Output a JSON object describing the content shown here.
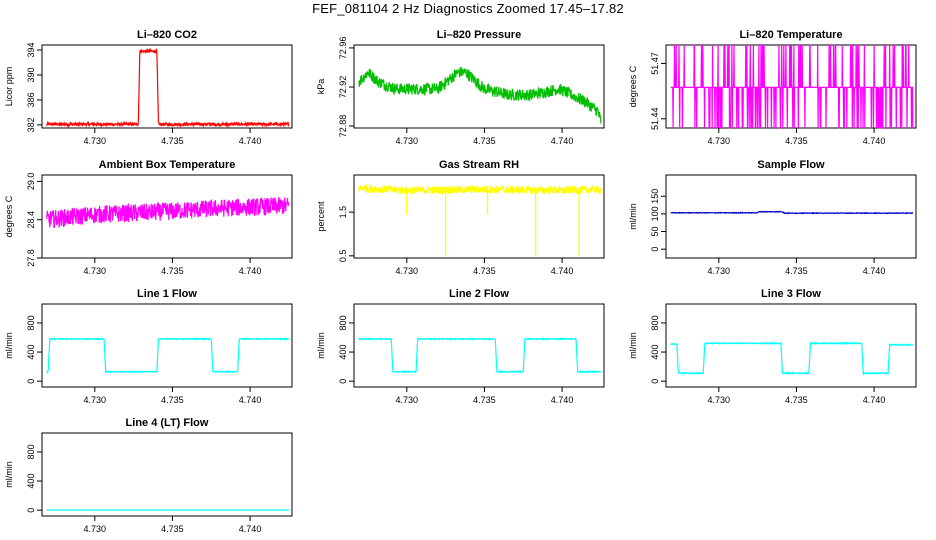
{
  "page": {
    "title": "FEF_081104  2 Hz Diagnostics Zoomed 17.45–17.82"
  },
  "chart_data": [
    {
      "type": "line",
      "title": "Li–820 CO2",
      "ylabel": "Licor ppm",
      "color": "#ff0000",
      "xlim": [
        4.7266,
        4.7427
      ],
      "ylim": [
        381.5,
        394.8
      ],
      "yticks": [
        "382",
        "386",
        "390",
        "394"
      ],
      "yticks_values": [
        382,
        386,
        390,
        394
      ],
      "xticks": [
        "4.730",
        "4.735",
        "4.740"
      ],
      "xticks_values": [
        4.73,
        4.735,
        4.74
      ],
      "x": [
        4.7269,
        4.7328,
        4.7329,
        4.734,
        4.7341,
        4.7425
      ],
      "y": [
        382.1,
        382.1,
        393.8,
        393.8,
        382.1,
        382.1
      ],
      "noise": 0.25
    },
    {
      "type": "line",
      "title": "Li–820 Pressure",
      "ylabel": "kPa",
      "color": "#00c000",
      "xlim": [
        4.7266,
        4.7427
      ],
      "ylim": [
        72.878,
        72.963
      ],
      "yticks": [
        "72.88",
        "72.92",
        "72.96"
      ],
      "yticks_values": [
        72.88,
        72.92,
        72.96
      ],
      "xticks": [
        "4.730",
        "4.735",
        "4.740"
      ],
      "xticks_values": [
        4.73,
        4.735,
        4.74
      ],
      "x": [
        4.7269,
        4.7275,
        4.7282,
        4.7293,
        4.732,
        4.7333,
        4.7338,
        4.735,
        4.7365,
        4.738,
        4.7398,
        4.7415,
        4.7423,
        4.7425
      ],
      "y": [
        72.925,
        72.935,
        72.925,
        72.918,
        72.918,
        72.935,
        72.935,
        72.918,
        72.912,
        72.912,
        72.918,
        72.905,
        72.895,
        72.885
      ],
      "noise": 0.006
    },
    {
      "type": "line",
      "title": "Li–820 Temperature",
      "ylabel": "degrees C",
      "color": "#ff00ff",
      "xlim": [
        4.7266,
        4.7427
      ],
      "ylim": [
        51.435,
        51.48
      ],
      "yticks": [
        "51.44",
        "51.47"
      ],
      "yticks_values": [
        51.44,
        51.47
      ],
      "xticks": [
        "4.730",
        "4.735",
        "4.740"
      ],
      "xticks_values": [
        4.73,
        4.735,
        4.74
      ],
      "x": [
        4.7269,
        4.7425
      ],
      "y": [
        51.457,
        51.457
      ],
      "noise": 0.0,
      "spike_high": 51.48,
      "spike_low": 51.435
    },
    {
      "type": "line",
      "title": "Ambient Box Temperature",
      "ylabel": "degrees C",
      "color": "#ff00ff",
      "xlim": [
        4.7266,
        4.7427
      ],
      "ylim": [
        27.8,
        29.1
      ],
      "yticks": [
        "27.8",
        "28.4",
        "29.0"
      ],
      "yticks_values": [
        27.8,
        28.4,
        29.0
      ],
      "xticks": [
        "4.730",
        "4.735",
        "4.740"
      ],
      "xticks_values": [
        4.73,
        4.735,
        4.74
      ],
      "x": [
        4.7269,
        4.73,
        4.734,
        4.738,
        4.7425
      ],
      "y": [
        28.4,
        28.48,
        28.52,
        28.58,
        28.62
      ],
      "noise": 0.14
    },
    {
      "type": "line",
      "title": "Gas Stream RH",
      "ylabel": "percent",
      "color": "#ffff00",
      "xlim": [
        4.7266,
        4.7427
      ],
      "ylim": [
        0.45,
        2.35
      ],
      "yticks": [
        "0.5",
        "1.5"
      ],
      "yticks_values": [
        0.5,
        1.5
      ],
      "xticks": [
        "4.730",
        "4.735",
        "4.740"
      ],
      "xticks_values": [
        4.73,
        4.735,
        4.74
      ],
      "x": [
        4.7269,
        4.73,
        4.735,
        4.74,
        4.7425
      ],
      "y": [
        2.05,
        2.0,
        2.02,
        2.0,
        2.02
      ],
      "noise": 0.09
    },
    {
      "type": "line",
      "title": "Sample Flow",
      "ylabel": "ml/min",
      "color": "#0000cc",
      "xlim": [
        4.7266,
        4.7427
      ],
      "ylim": [
        -25,
        210
      ],
      "yticks": [
        "0",
        "50",
        "100",
        "150"
      ],
      "yticks_values": [
        0,
        50,
        100,
        150
      ],
      "xticks": [
        "4.730",
        "4.735",
        "4.740"
      ],
      "xticks_values": [
        4.73,
        4.735,
        4.74
      ],
      "x": [
        4.7269,
        4.7325,
        4.7326,
        4.7341,
        4.7342,
        4.7425
      ],
      "y": [
        103,
        103,
        106,
        106,
        102,
        102
      ],
      "noise": 0.8
    },
    {
      "type": "line",
      "title": "Line 1 Flow",
      "ylabel": "ml/min",
      "color": "#00ffff",
      "xlim": [
        4.7266,
        4.7427
      ],
      "ylim": [
        -80,
        1060
      ],
      "yticks": [
        "0",
        "400",
        "800"
      ],
      "yticks_values": [
        0,
        400,
        800
      ],
      "xticks": [
        "4.730",
        "4.735",
        "4.740"
      ],
      "xticks_values": [
        4.73,
        4.735,
        4.74
      ],
      "x": [
        4.7269,
        4.727,
        4.7271,
        4.7306,
        4.7307,
        4.734,
        4.7341,
        4.7375,
        4.7376,
        4.7392,
        4.7393,
        4.7425
      ],
      "y": [
        130,
        130,
        580,
        580,
        130,
        130,
        580,
        580,
        130,
        130,
        580,
        580
      ],
      "noise": 6
    },
    {
      "type": "line",
      "title": "Line 2 Flow",
      "ylabel": "ml/min",
      "color": "#00ffff",
      "xlim": [
        4.7266,
        4.7427
      ],
      "ylim": [
        -80,
        1060
      ],
      "yticks": [
        "0",
        "400",
        "800"
      ],
      "yticks_values": [
        0,
        400,
        800
      ],
      "xticks": [
        "4.730",
        "4.735",
        "4.740"
      ],
      "xticks_values": [
        4.73,
        4.735,
        4.74
      ],
      "x": [
        4.7269,
        4.729,
        4.7291,
        4.7306,
        4.7307,
        4.7357,
        4.7358,
        4.7375,
        4.7376,
        4.7409,
        4.741,
        4.7425
      ],
      "y": [
        580,
        580,
        130,
        130,
        580,
        580,
        130,
        130,
        580,
        580,
        130,
        130
      ],
      "noise": 6
    },
    {
      "type": "line",
      "title": "Line 3 Flow",
      "ylabel": "ml/min",
      "color": "#00ffff",
      "xlim": [
        4.7266,
        4.7427
      ],
      "ylim": [
        -80,
        1060
      ],
      "yticks": [
        "0",
        "400",
        "800"
      ],
      "yticks_values": [
        0,
        400,
        800
      ],
      "xticks": [
        "4.730",
        "4.735",
        "4.740"
      ],
      "xticks_values": [
        4.73,
        4.735,
        4.74
      ],
      "x": [
        4.7269,
        4.7273,
        4.7274,
        4.729,
        4.7291,
        4.734,
        4.7341,
        4.7358,
        4.7359,
        4.7392,
        4.7393,
        4.7409,
        4.741,
        4.7425
      ],
      "y": [
        510,
        510,
        110,
        110,
        520,
        520,
        110,
        110,
        520,
        520,
        110,
        110,
        500,
        500
      ],
      "noise": 6
    },
    {
      "type": "line",
      "title": "Line 4 (LT) Flow",
      "ylabel": "ml/min",
      "color": "#00ffff",
      "xlim": [
        4.7266,
        4.7427
      ],
      "ylim": [
        -80,
        1060
      ],
      "yticks": [
        "0",
        "400",
        "800"
      ],
      "yticks_values": [
        0,
        400,
        800
      ],
      "xticks": [
        "4.730",
        "4.735",
        "4.740"
      ],
      "xticks_values": [
        4.73,
        4.735,
        4.74
      ],
      "x": [
        4.7269,
        4.7425
      ],
      "y": [
        3,
        3
      ],
      "noise": 0
    }
  ]
}
